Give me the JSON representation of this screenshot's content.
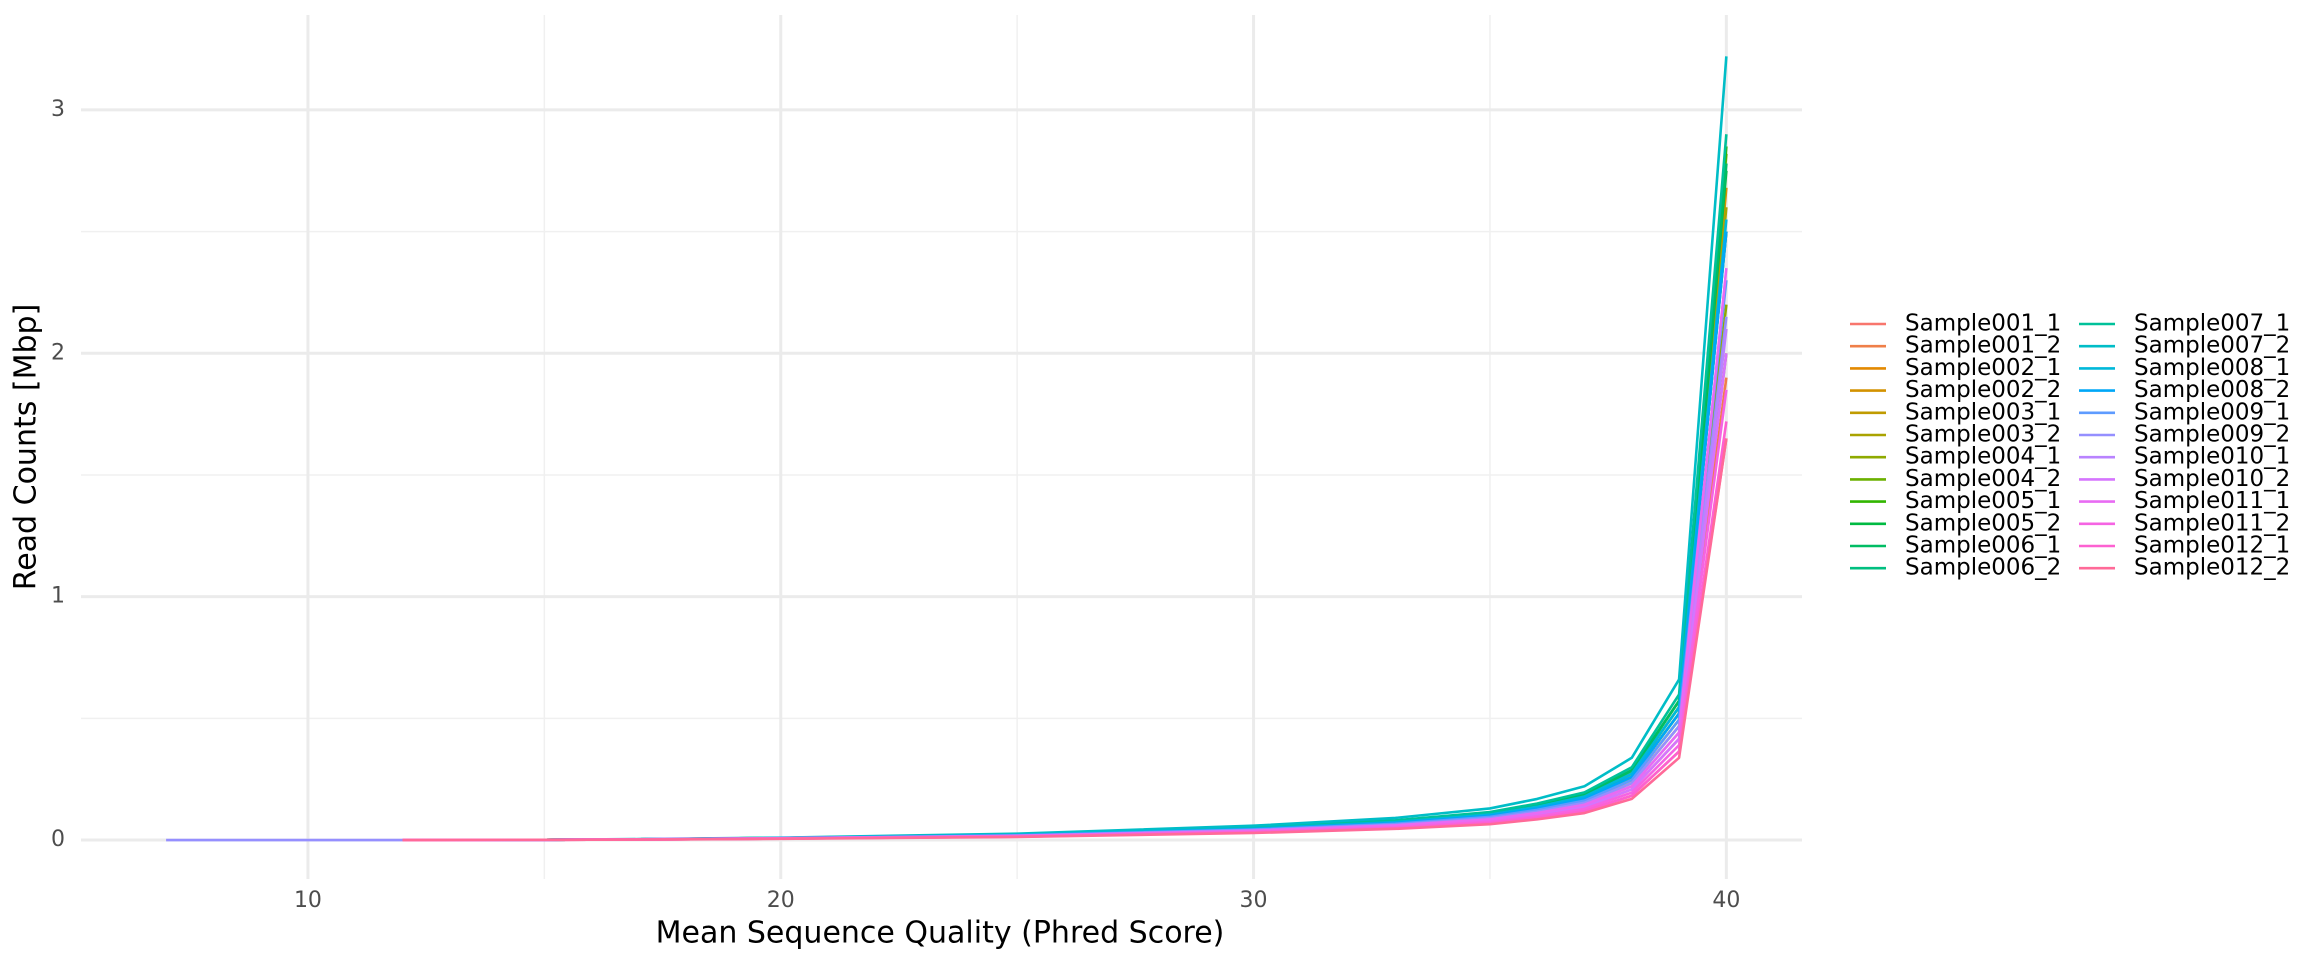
{
  "chart_data": {
    "type": "line",
    "x_label": "Mean Sequence Quality (Phred Score)",
    "y_label": "Read Counts [Mbp]",
    "x": [
      7,
      10,
      12,
      15,
      17,
      20,
      25,
      30,
      33,
      35,
      36,
      37,
      38,
      39,
      40
    ],
    "xlim": [
      5.2,
      41.6
    ],
    "xticks": [
      10,
      20,
      30,
      40
    ],
    "xminor": [
      15,
      25,
      35
    ],
    "ylim": [
      -0.16,
      3.39
    ],
    "yticks": [
      0,
      1,
      2,
      3
    ],
    "yminor": [
      0.5,
      1.5,
      2.5
    ],
    "grid": true,
    "legend": "right",
    "series": [
      {
        "name": "Sample001_1",
        "color": "#F8766D",
        "values": [
          null,
          null,
          0,
          0.001,
          0.002,
          0.006,
          0.014,
          0.032,
          0.049,
          0.07,
          0.091,
          0.119,
          0.182,
          0.364,
          1.65
        ]
      },
      {
        "name": "Sample001_2",
        "color": "#EF7F49",
        "values": [
          null,
          null,
          0,
          0.001,
          0.002,
          0.006,
          0.016,
          0.036,
          0.056,
          0.08,
          0.104,
          0.136,
          0.208,
          0.416,
          1.9
        ]
      },
      {
        "name": "Sample002_1",
        "color": "#E38900",
        "values": [
          null,
          null,
          0,
          0.001,
          0.003,
          0.008,
          0.02,
          0.045,
          0.07,
          0.1,
          0.13,
          0.17,
          0.26,
          0.52,
          2.5
        ]
      },
      {
        "name": "Sample002_2",
        "color": "#D39200",
        "values": [
          null,
          null,
          0,
          0.001,
          0.003,
          0.008,
          0.021,
          0.047,
          0.074,
          0.105,
          0.137,
          0.179,
          0.273,
          0.546,
          2.68
        ]
      },
      {
        "name": "Sample003_1",
        "color": "#C09B00",
        "values": [
          null,
          null,
          0,
          0.001,
          0.003,
          0.007,
          0.018,
          0.041,
          0.063,
          0.09,
          0.117,
          0.153,
          0.234,
          0.468,
          2.0
        ]
      },
      {
        "name": "Sample003_2",
        "color": "#AAA300",
        "values": [
          null,
          null,
          0,
          0.001,
          0.003,
          0.008,
          0.02,
          0.045,
          0.07,
          0.1,
          0.13,
          0.17,
          0.26,
          0.52,
          2.6
        ]
      },
      {
        "name": "Sample004_1",
        "color": "#8FAA00",
        "values": [
          null,
          null,
          0,
          0.001,
          0.003,
          0.008,
          0.019,
          0.043,
          0.067,
          0.095,
          0.124,
          0.162,
          0.247,
          0.494,
          2.2
        ]
      },
      {
        "name": "Sample004_2",
        "color": "#6BB100",
        "values": [
          null,
          null,
          0,
          0.001,
          0.003,
          0.009,
          0.022,
          0.05,
          0.077,
          0.11,
          0.143,
          0.187,
          0.286,
          0.572,
          2.82
        ]
      },
      {
        "name": "Sample005_1",
        "color": "#32B600",
        "values": [
          null,
          null,
          0,
          0.001,
          0.003,
          0.009,
          0.022,
          0.05,
          0.077,
          0.11,
          0.143,
          0.187,
          0.286,
          0.572,
          2.85
        ]
      },
      {
        "name": "Sample005_2",
        "color": "#00BA42",
        "values": [
          null,
          null,
          0,
          0.001,
          0.003,
          0.008,
          0.021,
          0.047,
          0.074,
          0.105,
          0.137,
          0.179,
          0.273,
          0.546,
          2.75
        ]
      },
      {
        "name": "Sample006_1",
        "color": "#00BD64",
        "values": [
          null,
          null,
          0,
          0.001,
          0.003,
          0.009,
          0.022,
          0.05,
          0.077,
          0.11,
          0.143,
          0.187,
          0.286,
          0.572,
          2.78
        ]
      },
      {
        "name": "Sample006_2",
        "color": "#00BF80",
        "values": [
          null,
          null,
          0,
          0.001,
          0.003,
          0.008,
          0.02,
          0.045,
          0.07,
          0.1,
          0.13,
          0.17,
          0.26,
          0.52,
          2.5
        ]
      },
      {
        "name": "Sample007_1",
        "color": "#00C19A",
        "values": [
          null,
          null,
          0,
          0.001,
          0.003,
          0.009,
          0.023,
          0.052,
          0.081,
          0.115,
          0.15,
          0.196,
          0.299,
          0.598,
          2.9
        ]
      },
      {
        "name": "Sample007_2",
        "color": "#00BDC7",
        "values": [
          null,
          null,
          0,
          0.001,
          0.004,
          0.01,
          0.026,
          0.059,
          0.091,
          0.13,
          0.169,
          0.221,
          0.338,
          0.66,
          3.22
        ]
      },
      {
        "name": "Sample008_1",
        "color": "#00B8DA",
        "values": [
          null,
          null,
          0,
          0.001,
          0.003,
          0.008,
          0.021,
          0.047,
          0.074,
          0.105,
          0.137,
          0.179,
          0.273,
          0.546,
          2.55
        ]
      },
      {
        "name": "Sample008_2",
        "color": "#00A7F7",
        "values": [
          null,
          null,
          0,
          0.001,
          0.003,
          0.008,
          0.02,
          0.045,
          0.07,
          0.1,
          0.13,
          0.17,
          0.26,
          0.52,
          2.5
        ]
      },
      {
        "name": "Sample009_1",
        "color": "#5E9BFF",
        "values": [
          null,
          null,
          0,
          0.001,
          0.003,
          0.008,
          0.019,
          0.043,
          0.067,
          0.095,
          0.124,
          0.162,
          0.247,
          0.494,
          2.3
        ]
      },
      {
        "name": "Sample009_2",
        "color": "#958FFF",
        "values": [
          0,
          0,
          0,
          0.001,
          0.003,
          0.007,
          0.018,
          0.041,
          0.063,
          0.09,
          0.117,
          0.153,
          0.234,
          0.468,
          2.15
        ]
      },
      {
        "name": "Sample010_1",
        "color": "#B983FF",
        "values": [
          null,
          null,
          0,
          0.001,
          0.003,
          0.007,
          0.017,
          0.038,
          0.06,
          0.085,
          0.111,
          0.145,
          0.221,
          0.442,
          2.1
        ]
      },
      {
        "name": "Sample010_2",
        "color": "#D575FE",
        "values": [
          null,
          null,
          0,
          0.001,
          0.002,
          0.006,
          0.016,
          0.036,
          0.056,
          0.08,
          0.104,
          0.136,
          0.208,
          0.416,
          2.0
        ]
      },
      {
        "name": "Sample011_1",
        "color": "#E86BF3",
        "values": [
          null,
          null,
          0,
          0.001,
          0.003,
          0.007,
          0.017,
          0.038,
          0.06,
          0.085,
          0.111,
          0.145,
          0.221,
          0.442,
          2.35
        ]
      },
      {
        "name": "Sample011_2",
        "color": "#F564E3",
        "values": [
          null,
          null,
          0,
          0.001,
          0.002,
          0.006,
          0.015,
          0.034,
          0.053,
          0.075,
          0.098,
          0.128,
          0.195,
          0.39,
          1.85
        ]
      },
      {
        "name": "Sample012_1",
        "color": "#FD61D1",
        "values": [
          null,
          null,
          0,
          0.001,
          0.002,
          0.006,
          0.014,
          0.032,
          0.049,
          0.07,
          0.091,
          0.119,
          0.182,
          0.364,
          1.72
        ]
      },
      {
        "name": "Sample012_2",
        "color": "#FF6A98",
        "values": [
          null,
          null,
          0,
          0.001,
          0.002,
          0.005,
          0.013,
          0.029,
          0.046,
          0.065,
          0.085,
          0.111,
          0.169,
          0.338,
          1.65
        ]
      }
    ]
  }
}
